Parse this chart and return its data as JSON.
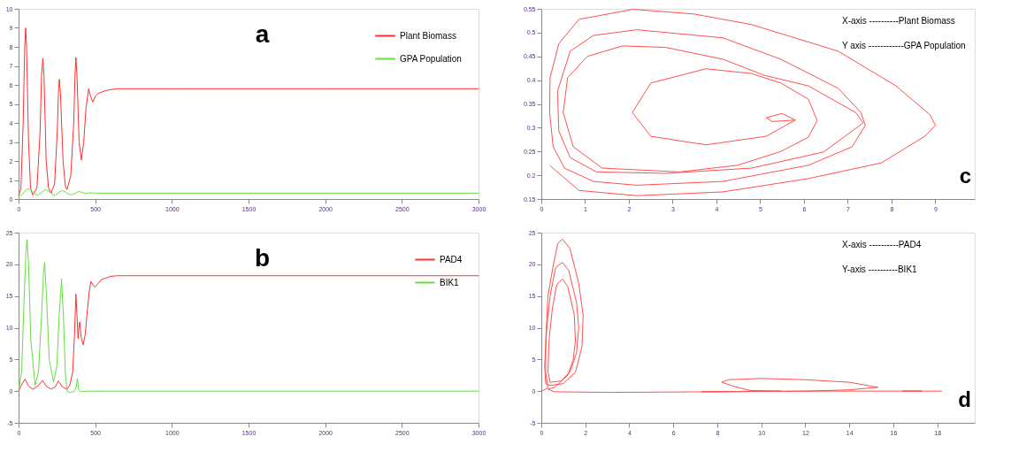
{
  "chart_data": [
    {
      "type": "line",
      "annotations": [
        "a"
      ],
      "legend": "top right",
      "xlim": [
        0,
        3000
      ],
      "xticks": [
        0,
        500,
        1000,
        1500,
        2000,
        2500,
        3000
      ],
      "ylim": [
        0,
        10
      ],
      "yticks": [
        0,
        1,
        2,
        3,
        4,
        5,
        6,
        7,
        8,
        9,
        10
      ],
      "series": [
        {
          "name": "Plant Biomass",
          "color": "#ff3030",
          "x": [
            0,
            15,
            30,
            40,
            46,
            52,
            65,
            78,
            93,
            120,
            140,
            150,
            158,
            166,
            180,
            195,
            212,
            235,
            252,
            260,
            266,
            273,
            290,
            305,
            316,
            340,
            360,
            368,
            374,
            381,
            395,
            409,
            425,
            440,
            457,
            470,
            484,
            500,
            519,
            560,
            600,
            644,
            1000,
            2000,
            3000
          ],
          "values": [
            0.2,
            0.5,
            4,
            8,
            9,
            8,
            3,
            0.6,
            0.2,
            0.6,
            3.5,
            6.5,
            7.4,
            6.5,
            2,
            0.6,
            0.3,
            0.8,
            3.5,
            5.6,
            6.3,
            5.6,
            2,
            0.7,
            0.5,
            1.2,
            4,
            6.5,
            7.45,
            6.5,
            3,
            2.05,
            3,
            4.8,
            5.8,
            5.4,
            5.1,
            5.4,
            5.55,
            5.68,
            5.75,
            5.8,
            5.8,
            5.8,
            5.8
          ]
        },
        {
          "name": "GPA Population",
          "color": "#66dd44",
          "x": [
            0,
            20,
            40,
            62,
            85,
            105,
            125,
            150,
            176,
            200,
            220,
            239,
            260,
            284,
            310,
            330,
            349,
            370,
            394,
            415,
            436,
            467,
            500,
            3000
          ],
          "values": [
            0.25,
            0.2,
            0.4,
            0.55,
            0.45,
            0.28,
            0.2,
            0.35,
            0.5,
            0.4,
            0.26,
            0.2,
            0.32,
            0.45,
            0.35,
            0.25,
            0.22,
            0.3,
            0.4,
            0.34,
            0.3,
            0.33,
            0.31,
            0.31
          ]
        }
      ]
    },
    {
      "type": "line",
      "annotations": [
        "b"
      ],
      "legend": "top right",
      "xlim": [
        0,
        3000
      ],
      "xticks": [
        0,
        500,
        1000,
        1500,
        2000,
        2500,
        3000
      ],
      "ylim": [
        -5,
        25
      ],
      "yticks": [
        -5,
        0,
        5,
        10,
        15,
        20,
        25
      ],
      "series": [
        {
          "name": "PAD4",
          "color": "#ff3030",
          "x": [
            0,
            20,
            42,
            65,
            93,
            130,
            156,
            180,
            212,
            240,
            260,
            285,
            316,
            335,
            353,
            365,
            374,
            381,
            388,
            393,
            399,
            408,
            421,
            435,
            446,
            460,
            471,
            485,
            498,
            520,
            540,
            600,
            644,
            3000
          ],
          "values": [
            0,
            1,
            1.9,
            0.8,
            0.3,
            0.9,
            1.7,
            0.8,
            0.3,
            0.7,
            1.6,
            0.7,
            0.3,
            1,
            3,
            9,
            15.3,
            12,
            8.3,
            10,
            10.9,
            8.5,
            7.3,
            9,
            12,
            15.5,
            17.3,
            16.8,
            16.4,
            17,
            17.6,
            18.1,
            18.2,
            18.2
          ]
        },
        {
          "name": "BIK1",
          "color": "#66dd44",
          "x": [
            0,
            20,
            35,
            48,
            56,
            65,
            80,
            108,
            130,
            150,
            162,
            170,
            180,
            200,
            228,
            250,
            265,
            280,
            292,
            305,
            316,
            330,
            360,
            375,
            384,
            392,
            400,
            460,
            3000
          ],
          "values": [
            0,
            3,
            14,
            22,
            23.9,
            20,
            8,
            0.9,
            3,
            12,
            18.5,
            20.3,
            16,
            5,
            1.4,
            4,
            12,
            17.7,
            12,
            3,
            0,
            -0.2,
            -0.1,
            0.5,
            2,
            0.2,
            -0.1,
            0,
            0
          ]
        }
      ]
    },
    {
      "type": "line",
      "annotations": [
        "X-axis ----------Plant Biomass",
        "Y axis ------------GPA Population",
        "c"
      ],
      "xlim": [
        0,
        9.9
      ],
      "xticks": [
        0,
        1,
        2,
        3,
        4,
        5,
        6,
        7,
        8,
        9
      ],
      "ylim": [
        0.15,
        0.55
      ],
      "yticks": [
        0.15,
        0.2,
        0.25,
        0.3,
        0.35,
        0.4,
        0.45,
        0.5,
        0.55
      ],
      "series": [
        {
          "color": "#ff5050",
          "x": [
            0.2,
            0.86,
            2.18,
            4.15,
            6.1,
            7.77,
            8.76,
            9.0,
            8.88,
            8.1,
            6.78,
            4.8,
            3.5,
            2.1,
            0.86,
            0.4,
            0.2,
            0.19,
            0.27,
            0.53,
            1.19,
            2.18,
            4.15,
            6.1,
            7.1,
            7.4,
            7.3,
            6.78,
            5.47,
            4.15,
            2.18,
            1.19,
            0.66,
            0.37,
            0.4,
            0.66,
            1.26,
            2.84,
            4.8,
            6.45,
            7.35,
            7.18,
            6.1,
            5.1,
            4.15,
            2.84,
            1.85,
            1.05,
            0.6,
            0.5,
            0.73,
            1.39,
            3.16,
            4.48,
            5.47,
            6.1,
            6.3,
            6.1,
            5.47,
            4.8,
            3.76,
            2.5,
            2.08,
            2.5,
            3.76,
            5.14,
            5.8,
            5.5,
            5.14,
            5.27,
            5.8
          ],
          "values": [
            0.22,
            0.168,
            0.157,
            0.165,
            0.193,
            0.226,
            0.282,
            0.305,
            0.327,
            0.388,
            0.461,
            0.517,
            0.539,
            0.549,
            0.528,
            0.477,
            0.405,
            0.332,
            0.26,
            0.215,
            0.187,
            0.179,
            0.187,
            0.221,
            0.26,
            0.305,
            0.332,
            0.383,
            0.444,
            0.489,
            0.506,
            0.494,
            0.461,
            0.377,
            0.293,
            0.237,
            0.207,
            0.204,
            0.215,
            0.249,
            0.31,
            0.332,
            0.388,
            0.41,
            0.444,
            0.469,
            0.472,
            0.45,
            0.405,
            0.332,
            0.26,
            0.215,
            0.207,
            0.221,
            0.25,
            0.28,
            0.315,
            0.36,
            0.394,
            0.414,
            0.424,
            0.394,
            0.332,
            0.282,
            0.264,
            0.282,
            0.316,
            0.33,
            0.321,
            0.313,
            0.316
          ]
        }
      ]
    },
    {
      "type": "line",
      "annotations": [
        "X-axis ----------PAD4",
        "Y-axis ----------BIK1",
        "d"
      ],
      "xlim": [
        0,
        19.7
      ],
      "xticks": [
        0,
        2,
        4,
        6,
        8,
        10,
        12,
        14,
        16,
        18
      ],
      "ylim": [
        -5,
        25
      ],
      "yticks": [
        -5,
        0,
        5,
        10,
        15,
        20,
        25
      ],
      "series": [
        {
          "color": "#ff5050",
          "x": [
            0,
            0.3,
            0.2,
            0.2,
            0.3,
            0.55,
            0.75,
            0.96,
            1.3,
            1.7,
            1.9,
            1.85,
            1.55,
            1.0,
            0.4,
            0.2,
            0.15,
            0.25,
            0.4,
            0.65,
            0.96,
            1.25,
            1.6,
            1.7,
            1.6,
            1.3,
            0.9,
            0.4,
            0.3,
            0.35,
            0.5,
            0.7,
            0.96,
            1.2,
            1.5,
            1.55,
            1.45,
            1.2,
            0.6,
            0.3,
            0.6,
            3,
            8,
            12,
            14,
            15.3,
            14,
            12,
            10,
            8.5,
            8.2,
            8.7,
            9.5,
            10.9,
            7.3,
            12,
            17.3,
            16.4,
            18.2
          ],
          "values": [
            0,
            0.5,
            3,
            8,
            15,
            20,
            23.3,
            24,
            22.5,
            17,
            12,
            7,
            3,
            1.2,
            0.9,
            1.2,
            4,
            10,
            15,
            19.5,
            20.3,
            19,
            14,
            10,
            6,
            3,
            1.6,
            1.4,
            3,
            8,
            13,
            16.8,
            17.7,
            16.5,
            12,
            8,
            5,
            2.5,
            0.6,
            0.3,
            -0.1,
            -0.2,
            -0.1,
            0,
            0.2,
            0.6,
            1.4,
            1.8,
            2.0,
            1.8,
            1.4,
            0.8,
            0.1,
            0,
            -0.1,
            0,
            0,
            0,
            0
          ]
        }
      ]
    }
  ]
}
